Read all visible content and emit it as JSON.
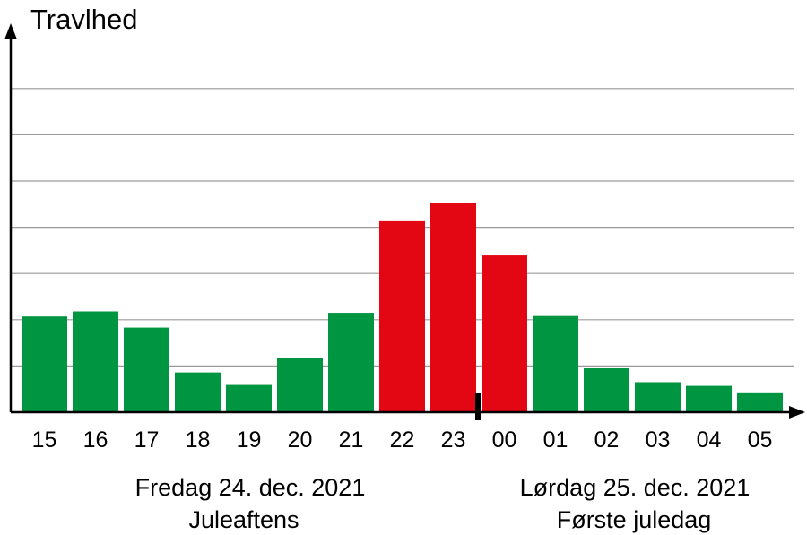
{
  "chart_data": {
    "type": "bar",
    "ylabel": "Travlhed",
    "xlabel": "",
    "ylim": [
      0,
      7
    ],
    "grid": true,
    "gridlines": [
      1,
      2,
      3,
      4,
      5,
      6,
      7
    ],
    "categories": [
      "15",
      "16",
      "17",
      "18",
      "19",
      "20",
      "21",
      "22",
      "23",
      "00",
      "01",
      "02",
      "03",
      "04",
      "05"
    ],
    "values": [
      2.07,
      2.18,
      1.83,
      0.86,
      0.59,
      1.17,
      2.15,
      4.13,
      4.52,
      3.39,
      2.08,
      0.95,
      0.65,
      0.57,
      0.43
    ],
    "colors": [
      "#009540",
      "#009540",
      "#009540",
      "#009540",
      "#009540",
      "#009540",
      "#009540",
      "#e30613",
      "#e30613",
      "#e30613",
      "#009540",
      "#009540",
      "#009540",
      "#009540",
      "#009540"
    ],
    "day_labels": [
      {
        "date": "Fredag 24. dec. 2021",
        "name": "Juleaftens"
      },
      {
        "date": "Lørdag 25. dec. 2021",
        "name": "Første juledag"
      }
    ],
    "midnight_marker": "00"
  }
}
